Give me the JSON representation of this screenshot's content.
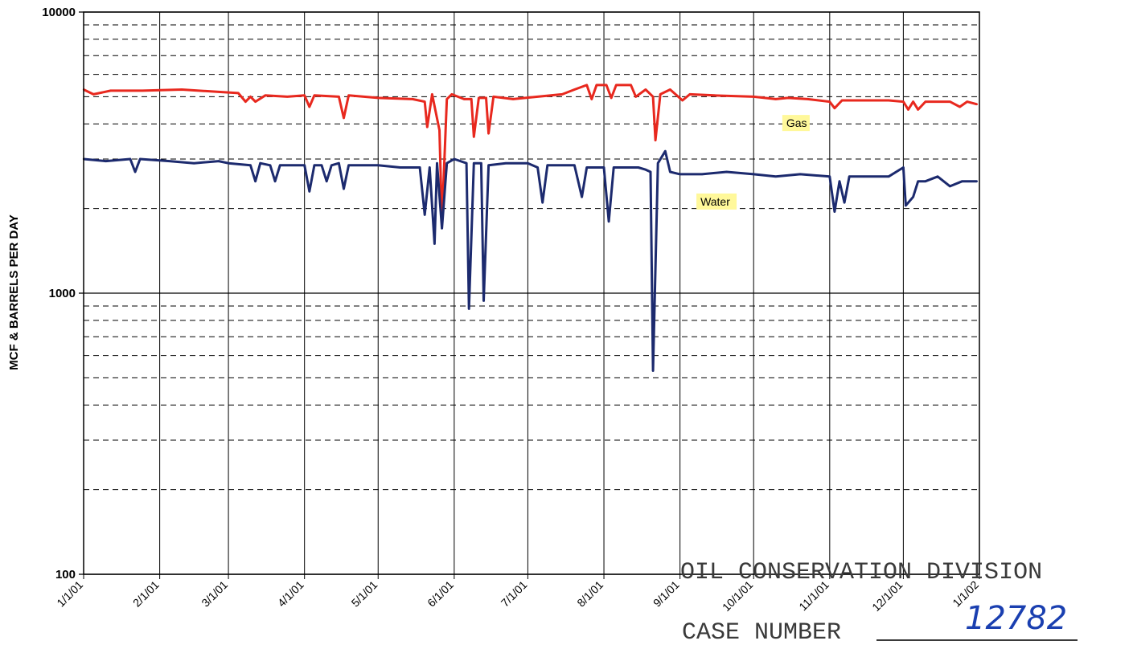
{
  "chart_data": {
    "type": "line",
    "title": "",
    "ylabel": "MCF & BARRELS PER DAY",
    "xlabel": "",
    "yscale": "log",
    "ylim": [
      100,
      10000
    ],
    "yticks": [
      100,
      1000,
      10000
    ],
    "ytick_labels": [
      "100",
      "1000",
      "10000"
    ],
    "xlim": [
      "2001-01-01",
      "2002-01-01"
    ],
    "x_tick_labels": [
      "1/1/01",
      "2/1/01",
      "3/1/01",
      "4/1/01",
      "5/1/01",
      "6/1/01",
      "7/1/01",
      "8/1/01",
      "9/1/01",
      "10/1/01",
      "11/1/01",
      "12/1/01",
      "1/1/02"
    ],
    "x_tick_dates": [
      "2001-01-01",
      "2001-02-01",
      "2001-03-01",
      "2001-04-01",
      "2001-05-01",
      "2001-06-01",
      "2001-07-01",
      "2001-08-01",
      "2001-09-01",
      "2001-10-01",
      "2001-11-01",
      "2001-12-01",
      "2002-01-01"
    ],
    "grid": true,
    "series": [
      {
        "name": "Gas",
        "color": "#e8281e",
        "style": "solid",
        "points": [
          [
            "2001-01-01",
            5300
          ],
          [
            "2001-01-05",
            5100
          ],
          [
            "2001-01-12",
            5250
          ],
          [
            "2001-01-25",
            5250
          ],
          [
            "2001-02-10",
            5300
          ],
          [
            "2001-02-25",
            5200
          ],
          [
            "2001-03-05",
            5150
          ],
          [
            "2001-03-08",
            4800
          ],
          [
            "2001-03-10",
            5000
          ],
          [
            "2001-03-12",
            4800
          ],
          [
            "2001-03-16",
            5050
          ],
          [
            "2001-03-25",
            5000
          ],
          [
            "2001-04-01",
            5050
          ],
          [
            "2001-04-03",
            4600
          ],
          [
            "2001-04-05",
            5050
          ],
          [
            "2001-04-15",
            5000
          ],
          [
            "2001-04-17",
            4200
          ],
          [
            "2001-04-19",
            5050
          ],
          [
            "2001-05-01",
            4950
          ],
          [
            "2001-05-15",
            4900
          ],
          [
            "2001-05-20",
            4800
          ],
          [
            "2001-05-21",
            3900
          ],
          [
            "2001-05-23",
            5100
          ],
          [
            "2001-05-26",
            3800
          ],
          [
            "2001-05-27",
            1800
          ],
          [
            "2001-05-29",
            4900
          ],
          [
            "2001-05-31",
            5100
          ],
          [
            "2001-06-05",
            4900
          ],
          [
            "2001-06-08",
            4900
          ],
          [
            "2001-06-09",
            3600
          ],
          [
            "2001-06-11",
            4950
          ],
          [
            "2001-06-14",
            4950
          ],
          [
            "2001-06-15",
            3700
          ],
          [
            "2001-06-17",
            5000
          ],
          [
            "2001-06-25",
            4900
          ],
          [
            "2001-07-05",
            5000
          ],
          [
            "2001-07-15",
            5100
          ],
          [
            "2001-07-20",
            5300
          ],
          [
            "2001-07-25",
            5500
          ],
          [
            "2001-07-27",
            4900
          ],
          [
            "2001-07-29",
            5500
          ],
          [
            "2001-08-02",
            5500
          ],
          [
            "2001-08-04",
            4950
          ],
          [
            "2001-08-06",
            5500
          ],
          [
            "2001-08-12",
            5500
          ],
          [
            "2001-08-14",
            5000
          ],
          [
            "2001-08-18",
            5300
          ],
          [
            "2001-08-21",
            5000
          ],
          [
            "2001-08-22",
            3500
          ],
          [
            "2001-08-24",
            5100
          ],
          [
            "2001-08-28",
            5300
          ],
          [
            "2001-09-02",
            4850
          ],
          [
            "2001-09-05",
            5100
          ],
          [
            "2001-09-15",
            5050
          ],
          [
            "2001-10-01",
            5000
          ],
          [
            "2001-10-10",
            4900
          ],
          [
            "2001-10-15",
            4950
          ],
          [
            "2001-10-23",
            4900
          ],
          [
            "2001-11-01",
            4800
          ],
          [
            "2001-11-03",
            4550
          ],
          [
            "2001-11-06",
            4850
          ],
          [
            "2001-11-15",
            4850
          ],
          [
            "2001-11-25",
            4850
          ],
          [
            "2001-12-01",
            4800
          ],
          [
            "2001-12-03",
            4500
          ],
          [
            "2001-12-05",
            4800
          ],
          [
            "2001-12-07",
            4500
          ],
          [
            "2001-12-10",
            4800
          ],
          [
            "2001-12-20",
            4800
          ],
          [
            "2001-12-24",
            4600
          ],
          [
            "2001-12-27",
            4800
          ],
          [
            "2001-12-31",
            4700
          ]
        ]
      },
      {
        "name": "Water",
        "color": "#1c2a6e",
        "style": "solid-with-dash-dot-drops",
        "points": [
          [
            "2001-01-01",
            3000
          ],
          [
            "2001-01-10",
            2950
          ],
          [
            "2001-01-20",
            3000
          ],
          [
            "2001-01-22",
            2700
          ],
          [
            "2001-01-24",
            3000
          ],
          [
            "2001-02-05",
            2950
          ],
          [
            "2001-02-15",
            2900
          ],
          [
            "2001-02-25",
            2950
          ],
          [
            "2001-03-01",
            2900
          ],
          [
            "2001-03-10",
            2850
          ],
          [
            "2001-03-12",
            2500
          ],
          [
            "2001-03-14",
            2900
          ],
          [
            "2001-03-18",
            2850
          ],
          [
            "2001-03-20",
            2500
          ],
          [
            "2001-03-22",
            2850
          ],
          [
            "2001-04-01",
            2850
          ],
          [
            "2001-04-03",
            2300
          ],
          [
            "2001-04-05",
            2850
          ],
          [
            "2001-04-08",
            2850
          ],
          [
            "2001-04-10",
            2500
          ],
          [
            "2001-04-12",
            2850
          ],
          [
            "2001-04-15",
            2900
          ],
          [
            "2001-04-17",
            2350
          ],
          [
            "2001-04-19",
            2850
          ],
          [
            "2001-05-01",
            2850
          ],
          [
            "2001-05-10",
            2800
          ],
          [
            "2001-05-18",
            2800
          ],
          [
            "2001-05-20",
            1900
          ],
          [
            "2001-05-22",
            2800
          ],
          [
            "2001-05-24",
            1500
          ],
          [
            "2001-05-25",
            2900
          ],
          [
            "2001-05-27",
            1700
          ],
          [
            "2001-05-29",
            2900
          ],
          [
            "2001-06-01",
            3000
          ],
          [
            "2001-06-06",
            2900
          ],
          [
            "2001-06-07",
            880
          ],
          [
            "2001-06-09",
            2900
          ],
          [
            "2001-06-12",
            2900
          ],
          [
            "2001-06-13",
            940
          ],
          [
            "2001-06-15",
            2850
          ],
          [
            "2001-06-22",
            2900
          ],
          [
            "2001-07-01",
            2900
          ],
          [
            "2001-07-05",
            2800
          ],
          [
            "2001-07-07",
            2100
          ],
          [
            "2001-07-09",
            2850
          ],
          [
            "2001-07-20",
            2850
          ],
          [
            "2001-07-23",
            2200
          ],
          [
            "2001-07-25",
            2800
          ],
          [
            "2001-08-01",
            2800
          ],
          [
            "2001-08-03",
            1800
          ],
          [
            "2001-08-05",
            2800
          ],
          [
            "2001-08-15",
            2800
          ],
          [
            "2001-08-18",
            2750
          ],
          [
            "2001-08-20",
            2700
          ],
          [
            "2001-08-21",
            530
          ],
          [
            "2001-08-23",
            2900
          ],
          [
            "2001-08-26",
            3200
          ],
          [
            "2001-08-28",
            2700
          ],
          [
            "2001-09-01",
            2650
          ],
          [
            "2001-09-10",
            2650
          ],
          [
            "2001-09-20",
            2700
          ],
          [
            "2001-10-01",
            2650
          ],
          [
            "2001-10-10",
            2600
          ],
          [
            "2001-10-20",
            2650
          ],
          [
            "2001-11-01",
            2600
          ],
          [
            "2001-11-03",
            1950
          ],
          [
            "2001-11-05",
            2500
          ],
          [
            "2001-11-07",
            2100
          ],
          [
            "2001-11-09",
            2600
          ],
          [
            "2001-11-15",
            2600
          ],
          [
            "2001-11-25",
            2600
          ],
          [
            "2001-12-01",
            2800
          ],
          [
            "2001-12-02",
            2050
          ],
          [
            "2001-12-05",
            2200
          ],
          [
            "2001-12-07",
            2500
          ],
          [
            "2001-12-10",
            2500
          ],
          [
            "2001-12-15",
            2600
          ],
          [
            "2001-12-20",
            2400
          ],
          [
            "2001-12-25",
            2500
          ],
          [
            "2001-12-31",
            2500
          ]
        ]
      }
    ],
    "annotations": [
      {
        "text": "Gas",
        "at": [
          "2001-10-14",
          3900
        ]
      },
      {
        "text": "Water",
        "at": [
          "2001-09-09",
          2050
        ]
      }
    ]
  },
  "stamp": {
    "line1": "OIL CONSERVATION DIVISION",
    "line2": "CASE NUMBER",
    "number": "12782"
  }
}
